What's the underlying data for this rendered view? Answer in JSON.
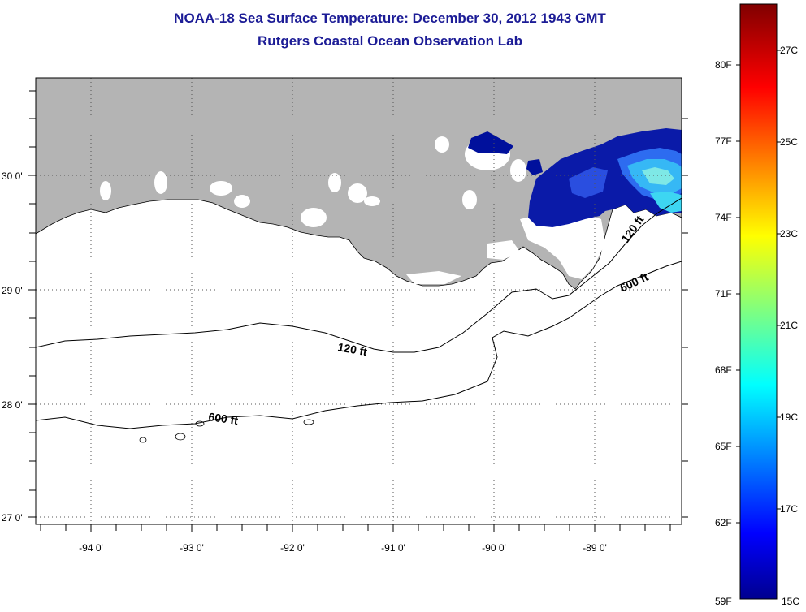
{
  "title": "NOAA-18 Sea Surface Temperature:  December 30, 2012 1943 GMT",
  "subtitle": "Rutgers Coastal Ocean Observation Lab",
  "map": {
    "lon_ticks": [
      "-94 0'",
      "-93 0'",
      "-92 0'",
      "-91 0'",
      "-90 0'",
      "-89 0'"
    ],
    "lat_ticks": [
      "30 0'",
      "29 0'",
      "28 0'",
      "27 0'"
    ],
    "lon_range": [
      -94.55,
      -88.15
    ],
    "lat_range": [
      26.95,
      29.85
    ],
    "land_color": "#b4b4b4",
    "ocean_color": "#ffffff",
    "grid": "dotted",
    "contours": [
      {
        "label": "120 ft",
        "depth_ft": 120
      },
      {
        "label": "600 ft",
        "depth_ft": 600
      }
    ],
    "contour_labels": [
      "120 ft",
      "600 ft",
      "120 ft",
      "600 ft"
    ]
  },
  "colorbar": {
    "f_labels": [
      "80F",
      "77F",
      "74F",
      "71F",
      "68F",
      "65F",
      "62F",
      "59F"
    ],
    "c_labels": [
      "27C",
      "25C",
      "23C",
      "21C",
      "19C",
      "17C",
      "15C"
    ],
    "colormap": "jet",
    "min_color": "#00008f",
    "max_color": "#800000"
  }
}
